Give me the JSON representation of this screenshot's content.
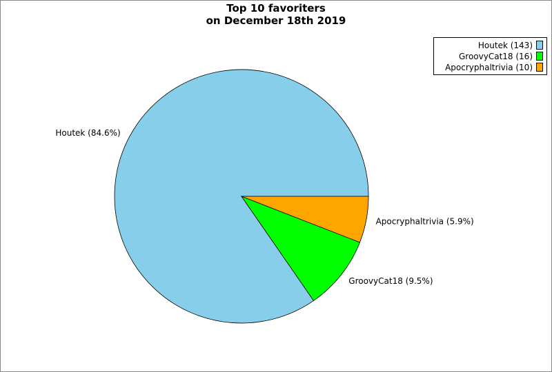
{
  "chart_data": {
    "type": "pie",
    "title": [
      "Top 10 favoriters",
      "on December 18th 2019"
    ],
    "slices": [
      {
        "name": "Houtek",
        "value": 143,
        "percent_label": "Houtek (84.6%)",
        "legend_label": "Houtek (143)",
        "color": "#87ceeb"
      },
      {
        "name": "GroovyCat18",
        "value": 16,
        "percent_label": "GroovyCat18 (9.5%)",
        "legend_label": "GroovyCat18 (16)",
        "color": "#00ff00"
      },
      {
        "name": "Apocryphaltrivia",
        "value": 10,
        "percent_label": "Apocryphaltrivia (5.9%)",
        "legend_label": "Apocryphaltrivia (10)",
        "color": "#ffa500"
      }
    ],
    "legend_position": "top-right",
    "start_angle_direction": "counterclockwise-from-3-oclock"
  }
}
